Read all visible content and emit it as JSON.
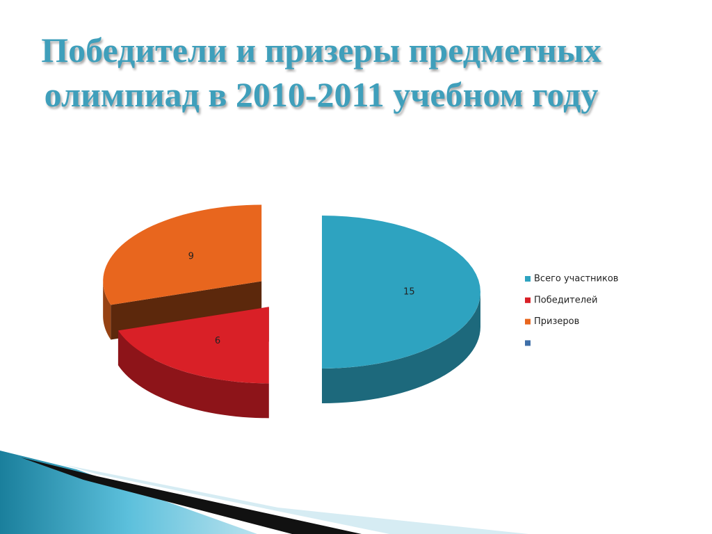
{
  "chart_data": {
    "type": "pie",
    "title": "Победители и призеры предметных олимпиад в 2010-2011 учебном году",
    "categories": [
      "Всего участников",
      "Победителей",
      "Призеров",
      null
    ],
    "values": [
      15,
      6,
      9,
      null
    ],
    "colors": [
      "#2ea3c0",
      "#d92027",
      "#e8661e",
      "#3f6fa8"
    ],
    "legend": "right"
  }
}
